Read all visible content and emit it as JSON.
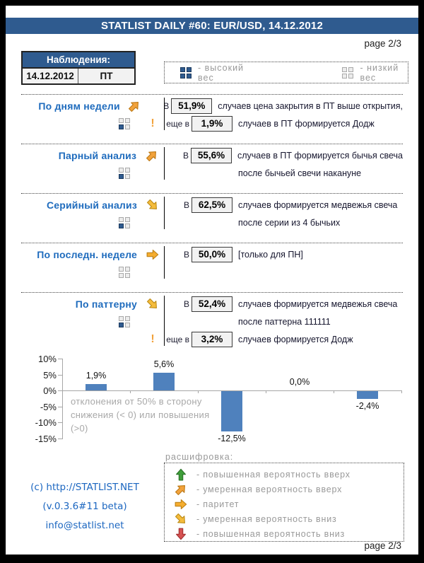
{
  "header": {
    "title": "STATLIST DAILY #60: EUR/USD, 14.12.2012",
    "page_top": "page 2/3",
    "page_bottom": "page 2/3"
  },
  "observations": {
    "title": "Наблюдения:",
    "date": "14.12.2012",
    "day": "ПТ"
  },
  "weight_legend": {
    "high_label": "- высокий вес",
    "low_label": "- низкий вес"
  },
  "sections": [
    {
      "label": "По дням недели",
      "arrow": "up-right",
      "weight": "high",
      "rows": [
        {
          "prefix": "В",
          "value": "51,9%",
          "text": "случаев цена закрытия в ПТ выше открытия,"
        },
        {
          "prefix": "еще в",
          "value": "1,9%",
          "text": "случаев в ПТ формируется Додж",
          "excl": true
        }
      ]
    },
    {
      "label": "Парный анализ",
      "arrow": "up-right",
      "weight": "high",
      "rows": [
        {
          "prefix": "В",
          "value": "55,6%",
          "text": "случаев в ПТ формируется бычья свеча"
        },
        {
          "text": "после бычьей свечи накануне"
        }
      ]
    },
    {
      "label": "Серийный анализ",
      "arrow": "down-right",
      "weight": "high",
      "rows": [
        {
          "prefix": "В",
          "value": "62,5%",
          "text": "случаев формируется медвежья свеча"
        },
        {
          "text": "после серии из 4 бычьих"
        }
      ]
    },
    {
      "label": "По последн. неделе",
      "arrow": "right",
      "weight": "low",
      "rows": [
        {
          "prefix": "В",
          "value": "50,0%",
          "text": "[только для ПН]"
        }
      ]
    },
    {
      "label": "По паттерну",
      "arrow": "down-right",
      "weight": "high",
      "rows": [
        {
          "prefix": "В",
          "value": "52,4%",
          "text": "случаев формируется медвежья свеча"
        },
        {
          "text": "после паттерна 111111"
        },
        {
          "prefix": "еще в",
          "value": "3,2%",
          "text": "случаев формируется Додж",
          "excl": true
        }
      ]
    }
  ],
  "chart_data": {
    "type": "bar",
    "categories": [
      "По дням недели",
      "Парный анализ",
      "Серийный анализ",
      "По последн. неделе",
      "По паттерну"
    ],
    "values": [
      1.9,
      5.6,
      -12.5,
      0.0,
      -2.4
    ],
    "data_labels": [
      "1,9%",
      "5,6%",
      "-12,5%",
      "0,0%",
      "-2,4%"
    ],
    "title": "",
    "xlabel": "",
    "ylabel": "",
    "ylim": [
      -15,
      10
    ],
    "yticks": [
      "10%",
      "5%",
      "0%",
      "-5%",
      "-10%",
      "-15%"
    ],
    "grid": false,
    "legend": "none",
    "bar_color": "#4f81bd",
    "annotation_lines": [
      "отклонения от 50%  в сторону",
      "снижения  (< 0) или  повышения",
      "(>0)"
    ]
  },
  "decoder": {
    "title": "расшифровка:",
    "items": [
      {
        "dir": "up",
        "label": "- повышенная вероятность вверх"
      },
      {
        "dir": "up-right",
        "label": "- умеренная вероятность вверх"
      },
      {
        "dir": "right",
        "label": "- паритет"
      },
      {
        "dir": "down-right",
        "label": "- умеренная вероятность вниз"
      },
      {
        "dir": "down",
        "label": "- повышенная вероятность вниз"
      }
    ]
  },
  "footer": {
    "copyright": "(c) http://STATLIST.NET",
    "version": "(v.0.3.6#11 beta)",
    "email": "info@statlist.net"
  },
  "colors": {
    "header_blue": "#2f5b8f",
    "label_blue": "#1e6bbd",
    "link_blue": "#1b66c0",
    "bar_blue": "#4f81bd",
    "gray_text": "#999999",
    "annotation_gray": "#a8a8a8",
    "box_bg": "#f2f2f2",
    "arrows": {
      "up": {
        "fill": "#3f9e3a",
        "stroke": "#2c7429"
      },
      "up_right": {
        "fill": "#f2a23b",
        "stroke": "#bd7a17"
      },
      "right": {
        "fill": "#f5ad2e",
        "stroke": "#bd8117"
      },
      "down_right": {
        "fill": "#f5bc3c",
        "stroke": "#bd8c17"
      },
      "down": {
        "fill": "#d65252",
        "stroke": "#a23030"
      }
    }
  }
}
